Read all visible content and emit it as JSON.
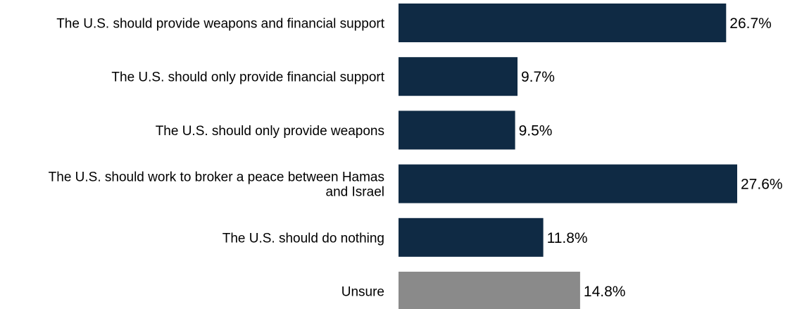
{
  "chart_data": {
    "type": "bar",
    "orientation": "horizontal",
    "categories": [
      [
        "The U.S. should provide weapons and financial support"
      ],
      [
        "The U.S. should only provide financial support"
      ],
      [
        "The U.S. should only provide weapons"
      ],
      [
        "The U.S. should work to broker a peace between Hamas",
        "and Israel"
      ],
      [
        "The U.S. should do nothing"
      ],
      [
        "Unsure"
      ]
    ],
    "values": [
      26.7,
      9.7,
      9.5,
      27.6,
      11.8,
      14.8
    ],
    "value_labels": [
      "26.7%",
      "9.7%",
      "9.5%",
      "27.6%",
      "11.8%",
      "14.8%"
    ],
    "bar_colors": [
      "#0f2a44",
      "#0f2a44",
      "#0f2a44",
      "#0f2a44",
      "#0f2a44",
      "#8a8a8a"
    ],
    "title": "",
    "xlabel": "",
    "ylabel": "",
    "xlim": [
      0,
      27.6
    ],
    "grid": false,
    "legend": "none"
  }
}
